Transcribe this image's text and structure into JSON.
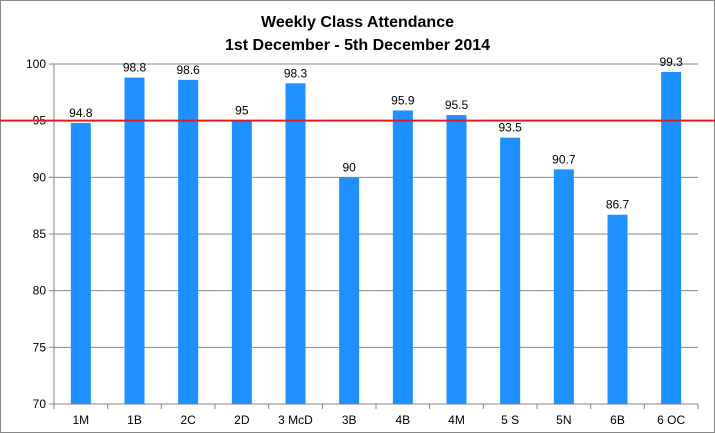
{
  "chart_data": {
    "type": "bar",
    "title": "Weekly Class Attendance",
    "subtitle": "1st December - 5th December 2014",
    "categories": [
      "1M",
      "1B",
      "2C",
      "2D",
      "3 McD",
      "3B",
      "4B",
      "4M",
      "5 S",
      "5N",
      "6B",
      "6 OC"
    ],
    "values": [
      94.8,
      98.8,
      98.6,
      95,
      98.3,
      90,
      95.9,
      95.5,
      93.5,
      90.7,
      86.7,
      99.3
    ],
    "data_labels": [
      "94.8",
      "98.8",
      "98.6",
      "95",
      "98.3",
      "90",
      "95.9",
      "95.5",
      "93.5",
      "90.7",
      "86.7",
      "99.3"
    ],
    "ylim": [
      70,
      100
    ],
    "y_ticks": [
      70,
      75,
      80,
      85,
      90,
      95,
      100
    ],
    "xlabel": "",
    "ylabel": "",
    "grid": true,
    "legend": "none",
    "reference_line": {
      "value": 95,
      "color": "#e41a1c"
    },
    "colors": {
      "bar": "#1e90ff",
      "grid": "#868686",
      "axis": "#868686"
    }
  }
}
